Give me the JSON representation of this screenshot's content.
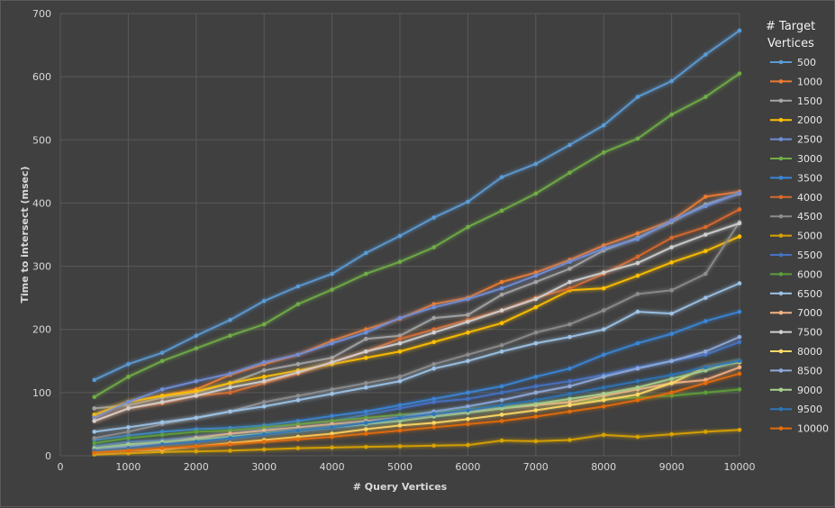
{
  "chart_data": {
    "type": "line",
    "title": "",
    "xlabel": "# Query Vertices",
    "ylabel": "Time to intersect (msec)",
    "legend_title": "# Target Vertices",
    "legend_position": "right",
    "grid": true,
    "xlim": [
      0,
      10000
    ],
    "ylim": [
      0,
      700
    ],
    "x_ticks": [
      "0",
      "1000",
      "2000",
      "3000",
      "4000",
      "5000",
      "6000",
      "7000",
      "8000",
      "9000",
      "10000"
    ],
    "y_ticks": [
      "0",
      "100",
      "200",
      "300",
      "400",
      "500",
      "600",
      "700"
    ],
    "x": [
      500,
      1000,
      1500,
      2000,
      2500,
      3000,
      3500,
      4000,
      4500,
      5000,
      5500,
      6000,
      6500,
      7000,
      7500,
      8000,
      8500,
      9000,
      9500,
      10000
    ],
    "series": [
      {
        "name": "500",
        "color": "#5b9bd5",
        "values": [
          120,
          145,
          163,
          190,
          215,
          245,
          268,
          288,
          321,
          348,
          377,
          402,
          441,
          462,
          492,
          523,
          568,
          593,
          635,
          673
        ]
      },
      {
        "name": "1000",
        "color": "#ed7d31",
        "values": [
          62,
          85,
          95,
          105,
          128,
          145,
          160,
          182,
          200,
          217,
          240,
          250,
          275,
          290,
          310,
          333,
          352,
          372,
          410,
          418
        ]
      },
      {
        "name": "1500",
        "color": "#a5a5a5",
        "values": [
          75,
          80,
          92,
          100,
          115,
          135,
          145,
          155,
          185,
          190,
          218,
          223,
          255,
          275,
          296,
          325,
          345,
          370,
          398,
          415
        ]
      },
      {
        "name": "2000",
        "color": "#ffc000",
        "values": [
          65,
          85,
          95,
          102,
          115,
          125,
          135,
          145,
          155,
          165,
          180,
          195,
          210,
          235,
          262,
          265,
          285,
          306,
          324,
          347
        ]
      },
      {
        "name": "2500",
        "color": "#6f8fd8",
        "values": [
          60,
          85,
          105,
          118,
          130,
          148,
          160,
          178,
          195,
          218,
          235,
          248,
          265,
          285,
          307,
          328,
          343,
          372,
          395,
          416
        ]
      },
      {
        "name": "3000",
        "color": "#70ad47",
        "values": [
          93,
          125,
          150,
          170,
          190,
          208,
          240,
          263,
          288,
          307,
          330,
          362,
          388,
          415,
          448,
          480,
          502,
          540,
          568,
          605
        ]
      },
      {
        "name": "3500",
        "color": "#3a86d8",
        "values": [
          25,
          32,
          38,
          42,
          44,
          48,
          55,
          63,
          70,
          80,
          90,
          100,
          110,
          125,
          138,
          160,
          178,
          193,
          213,
          228
        ]
      },
      {
        "name": "4000",
        "color": "#d86b2d",
        "values": [
          55,
          75,
          83,
          95,
          100,
          115,
          130,
          148,
          165,
          185,
          200,
          215,
          230,
          250,
          265,
          288,
          315,
          345,
          362,
          390
        ]
      },
      {
        "name": "4500",
        "color": "#8c8c8c",
        "values": [
          28,
          38,
          50,
          60,
          70,
          85,
          95,
          105,
          115,
          125,
          145,
          160,
          175,
          195,
          208,
          230,
          256,
          262,
          288,
          370
        ]
      },
      {
        "name": "5000",
        "color": "#d9a300",
        "values": [
          2,
          4,
          6,
          7,
          8,
          10,
          12,
          13,
          14,
          15,
          16,
          17,
          24,
          23,
          25,
          33,
          30,
          34,
          38,
          41
        ]
      },
      {
        "name": "5500",
        "color": "#4472c4",
        "values": [
          15,
          22,
          25,
          30,
          35,
          42,
          50,
          55,
          65,
          75,
          85,
          90,
          100,
          110,
          118,
          128,
          140,
          150,
          160,
          180
        ]
      },
      {
        "name": "6000",
        "color": "#5e9e3b",
        "values": [
          20,
          28,
          33,
          38,
          40,
          45,
          50,
          55,
          60,
          65,
          68,
          73,
          78,
          82,
          85,
          90,
          92,
          95,
          100,
          105
        ]
      },
      {
        "name": "6500",
        "color": "#9dc3e6",
        "values": [
          38,
          45,
          53,
          60,
          70,
          78,
          88,
          98,
          108,
          118,
          138,
          150,
          165,
          178,
          188,
          200,
          228,
          225,
          250,
          273
        ]
      },
      {
        "name": "7000",
        "color": "#f4b183",
        "values": [
          8,
          15,
          20,
          28,
          35,
          40,
          45,
          50,
          55,
          60,
          65,
          70,
          75,
          80,
          85,
          95,
          105,
          115,
          120,
          140
        ]
      },
      {
        "name": "7500",
        "color": "#d0d0d0",
        "values": [
          55,
          75,
          85,
          95,
          108,
          118,
          132,
          148,
          165,
          178,
          195,
          212,
          230,
          248,
          275,
          290,
          305,
          330,
          350,
          368
        ]
      },
      {
        "name": "8000",
        "color": "#ffd966",
        "values": [
          5,
          8,
          10,
          15,
          20,
          25,
          30,
          35,
          42,
          48,
          52,
          58,
          65,
          72,
          80,
          88,
          97,
          115,
          140,
          148
        ]
      },
      {
        "name": "8500",
        "color": "#8faadc",
        "values": [
          10,
          15,
          18,
          22,
          28,
          35,
          40,
          45,
          52,
          60,
          70,
          78,
          88,
          100,
          110,
          125,
          138,
          150,
          165,
          188
        ]
      },
      {
        "name": "9000",
        "color": "#a9d18e",
        "values": [
          12,
          18,
          22,
          26,
          30,
          35,
          40,
          45,
          50,
          55,
          62,
          68,
          75,
          82,
          90,
          98,
          108,
          122,
          135,
          150
        ]
      },
      {
        "name": "9500",
        "color": "#2e75b6",
        "values": [
          8,
          12,
          18,
          22,
          28,
          34,
          40,
          45,
          52,
          60,
          66,
          72,
          80,
          88,
          98,
          108,
          118,
          128,
          140,
          150
        ]
      },
      {
        "name": "10000",
        "color": "#e46c0a",
        "values": [
          5,
          8,
          12,
          15,
          18,
          22,
          26,
          30,
          35,
          40,
          45,
          50,
          55,
          62,
          70,
          78,
          88,
          100,
          115,
          130
        ]
      }
    ]
  }
}
